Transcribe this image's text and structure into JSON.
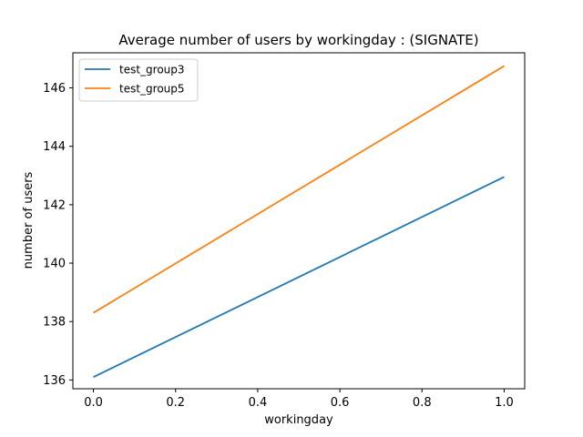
{
  "chart_data": {
    "type": "line",
    "title": "Average number of users by workingday : (SIGNATE)",
    "xlabel": "workingday",
    "ylabel": "number of users",
    "x": [
      0.0,
      1.0
    ],
    "xlim": [
      -0.05,
      1.05
    ],
    "ylim": [
      135.7,
      147.2
    ],
    "xticks": [
      0.0,
      0.2,
      0.4,
      0.6,
      0.8,
      1.0
    ],
    "xtick_labels": [
      "0.0",
      "0.2",
      "0.4",
      "0.6",
      "0.8",
      "1.0"
    ],
    "yticks": [
      136,
      138,
      140,
      142,
      144,
      146
    ],
    "ytick_labels": [
      "136",
      "138",
      "140",
      "142",
      "144",
      "146"
    ],
    "grid": false,
    "legend_position": "top-left",
    "series": [
      {
        "name": "test_group3",
        "color": "#1f77b4",
        "values": [
          136.1,
          142.95
        ]
      },
      {
        "name": "test_group5",
        "color": "#ff7f0e",
        "values": [
          138.3,
          146.75
        ]
      }
    ]
  }
}
